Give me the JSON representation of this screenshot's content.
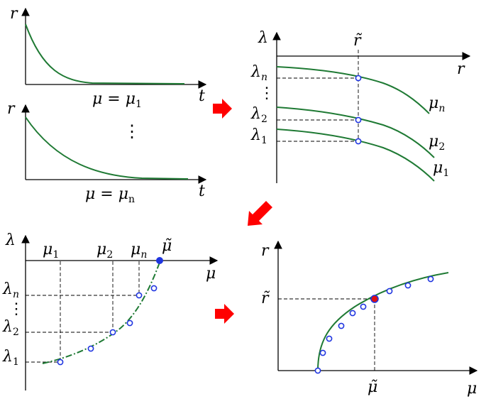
{
  "panel_decay": {
    "top": {
      "y_label": "r",
      "x_label": "t",
      "caption": "μ = μ",
      "caption_sub": "1"
    },
    "bottom": {
      "y_label": "r",
      "x_label": "t",
      "caption": "μ = μ",
      "caption_sub": "n"
    },
    "ellipsis": "⋮"
  },
  "panel_lambda_r": {
    "y_label": "λ",
    "x_label": "r",
    "marker": "r̃",
    "y_ticks": [
      {
        "base": "λ",
        "sub": "n"
      },
      {
        "base": "λ",
        "sub": "2"
      },
      {
        "base": "λ",
        "sub": "1"
      }
    ],
    "ellipsis": "⋮",
    "curve_labels": [
      {
        "base": "μ",
        "sub": "n"
      },
      {
        "base": "μ",
        "sub": "2"
      },
      {
        "base": "μ",
        "sub": "1"
      }
    ]
  },
  "panel_lambda_mu": {
    "y_label": "λ",
    "x_label": "μ",
    "marker": "μ̃",
    "x_ticks": [
      {
        "base": "μ",
        "sub": "1"
      },
      {
        "base": "μ",
        "sub": "2"
      },
      {
        "base": "μ",
        "sub": "n"
      }
    ],
    "y_ticks": [
      {
        "base": "λ",
        "sub": "n"
      },
      {
        "base": "λ",
        "sub": "2"
      },
      {
        "base": "λ",
        "sub": "1"
      }
    ],
    "ellipsis": "⋮"
  },
  "panel_r_mu": {
    "y_label": "r",
    "x_label": "μ",
    "marker_y": "r̃",
    "marker_x": "μ̃"
  },
  "colors": {
    "curve": "#1f7a34",
    "points": "#1f35e0",
    "arrows": "#ff0000"
  }
}
